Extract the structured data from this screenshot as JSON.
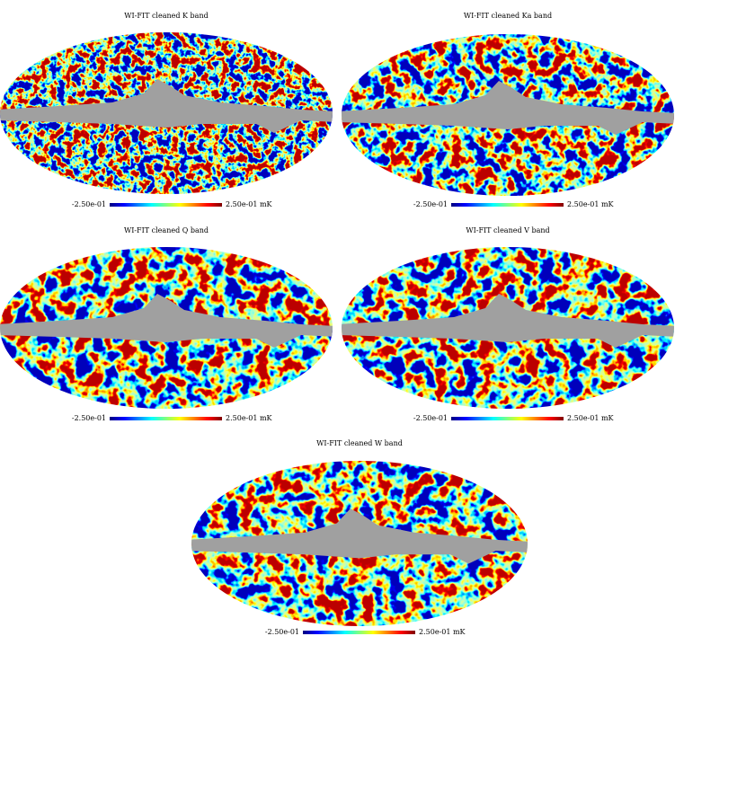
{
  "panels": [
    {
      "title": "WI-FIT cleaned K band",
      "min_label": "-2.50e-01",
      "max_label": "2.50e-01 mK"
    },
    {
      "title": "WI-FIT cleaned Ka band",
      "min_label": "-2.50e-01",
      "max_label": "2.50e-01 mK"
    },
    {
      "title": "WI-FIT cleaned Q band",
      "min_label": "-2.50e-01",
      "max_label": "2.50e-01 mK"
    },
    {
      "title": "WI-FIT cleaned V band",
      "min_label": "-2.50e-01",
      "max_label": "2.50e-01 mK"
    },
    {
      "title": "WI-FIT cleaned W band",
      "min_label": "-2.50e-01",
      "max_label": "2.50e-01 mK"
    }
  ]
}
